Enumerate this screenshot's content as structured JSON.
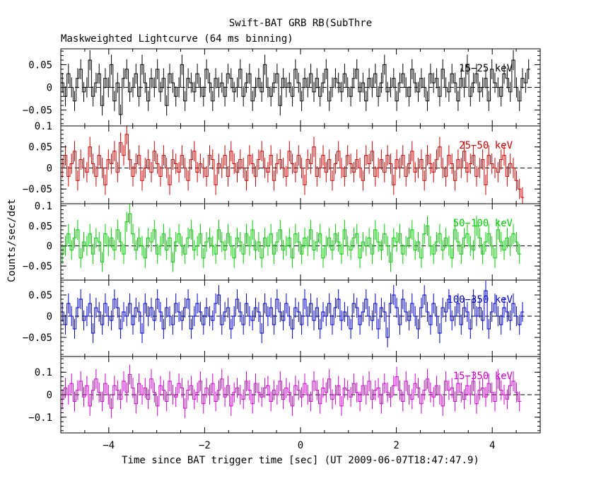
{
  "title": "Swift-BAT GRB RB(SubThre",
  "subtitle": "Maskweighted Lightcurve (64 ms binning)",
  "xlabel": "Time since BAT trigger time [sec] (UT 2009-06-07T18:47:47.9)",
  "ylabel": "Counts/sec/det",
  "xticks": [
    -4,
    -2,
    0,
    2,
    4
  ],
  "xtick_labels": [
    "−4",
    "−2",
    "0",
    "2",
    "4"
  ],
  "chart_data": {
    "type": "line",
    "xlim": [
      -5,
      5
    ],
    "bin_width_sec": 0.064,
    "panels": [
      {
        "name": "15−25 keV",
        "color": "#000000",
        "ylim": [
          -0.085,
          0.085
        ],
        "yticks": [
          -0.05,
          0,
          0.05
        ],
        "ytick_labels": [
          "−0.05",
          "0",
          "0.05"
        ],
        "values": [
          0.01,
          -0.02,
          0.03,
          0.0,
          -0.03,
          0.02,
          0.04,
          -0.01,
          0.0,
          0.06,
          -0.02,
          0.01,
          0.03,
          -0.04,
          0.02,
          0.0,
          0.05,
          -0.03,
          0.01,
          -0.06,
          0.02,
          0.04,
          -0.01,
          0.0,
          0.03,
          -0.02,
          0.05,
          0.01,
          -0.03,
          0.02,
          0.0,
          0.04,
          -0.01,
          0.02,
          -0.04,
          0.03,
          0.01,
          -0.02,
          0.0,
          0.05,
          -0.03,
          0.02,
          0.01,
          -0.01,
          0.03,
          0.0,
          -0.02,
          0.04,
          0.01,
          -0.03,
          0.02,
          0.0,
          0.01,
          -0.02,
          0.03,
          0.02,
          -0.01,
          0.0,
          0.04,
          -0.02,
          0.01,
          0.03,
          -0.03,
          0.0,
          0.02,
          -0.01,
          0.05,
          0.0,
          -0.02,
          0.01,
          0.03,
          -0.04,
          0.02,
          0.0,
          0.01,
          -0.02,
          0.04,
          0.01,
          -0.03,
          0.02,
          0.0,
          0.03,
          -0.01,
          0.02,
          -0.02,
          0.01,
          0.04,
          -0.03,
          0.0,
          0.02,
          0.01,
          -0.01,
          0.03,
          0.0,
          -0.02,
          0.02,
          0.04,
          -0.01,
          0.01,
          -0.03,
          0.02,
          0.0,
          0.03,
          -0.02,
          0.01,
          0.05,
          -0.01,
          0.0,
          0.02,
          -0.03,
          0.01,
          0.03,
          0.0,
          -0.02,
          0.04,
          0.01,
          -0.01,
          0.02,
          0.0,
          -0.03,
          0.03,
          0.01,
          0.02,
          -0.02,
          0.04,
          0.0,
          -0.01,
          0.03,
          0.01,
          -0.03,
          0.02,
          0.0,
          0.05,
          -0.02,
          0.01,
          0.03,
          -0.01,
          0.0,
          0.02,
          -0.03,
          0.04,
          0.01,
          0.0,
          -0.02,
          0.03,
          0.02,
          -0.01,
          0.06,
          0.0,
          -0.03,
          0.02,
          0.01,
          0.04
        ]
      },
      {
        "name": "25−50 keV",
        "color": "#cc0000",
        "ylim": [
          -0.085,
          0.1
        ],
        "yticks": [
          -0.05,
          0,
          0.05,
          0.1
        ],
        "ytick_labels": [
          "−0.05",
          "0",
          "0.05",
          "0.1"
        ],
        "values": [
          0.0,
          0.03,
          -0.02,
          0.01,
          0.04,
          -0.03,
          0.02,
          0.0,
          -0.01,
          0.05,
          0.01,
          -0.02,
          0.03,
          0.0,
          -0.04,
          0.02,
          0.01,
          0.04,
          -0.01,
          0.06,
          0.03,
          0.08,
          0.02,
          -0.02,
          0.01,
          0.03,
          -0.03,
          0.0,
          0.02,
          -0.01,
          0.04,
          0.01,
          -0.02,
          0.03,
          0.0,
          -0.04,
          0.02,
          0.01,
          -0.01,
          0.03,
          0.0,
          -0.03,
          0.02,
          0.04,
          -0.01,
          0.01,
          0.0,
          -0.02,
          0.03,
          0.02,
          -0.04,
          0.01,
          0.0,
          0.03,
          -0.02,
          0.04,
          0.01,
          -0.01,
          0.02,
          0.0,
          -0.03,
          0.03,
          0.01,
          -0.02,
          0.02,
          0.04,
          0.0,
          -0.01,
          0.03,
          -0.03,
          0.01,
          0.02,
          0.0,
          -0.02,
          0.04,
          0.01,
          -0.01,
          0.03,
          0.0,
          -0.04,
          0.02,
          0.01,
          0.05,
          -0.02,
          0.0,
          0.03,
          -0.01,
          0.02,
          -0.03,
          0.01,
          0.04,
          0.0,
          -0.02,
          0.03,
          0.01,
          -0.01,
          0.02,
          0.0,
          -0.03,
          0.03,
          0.01,
          0.04,
          -0.02,
          0.0,
          0.02,
          -0.01,
          0.03,
          0.01,
          -0.04,
          0.02,
          0.0,
          0.03,
          -0.02,
          0.01,
          0.04,
          -0.01,
          0.0,
          0.02,
          -0.03,
          0.03,
          0.01,
          -0.01,
          0.02,
          0.05,
          0.0,
          -0.02,
          0.03,
          0.01,
          -0.03,
          0.02,
          0.0,
          0.04,
          -0.01,
          0.01,
          0.03,
          -0.02,
          0.0,
          0.02,
          -0.04,
          0.03,
          0.01,
          0.0,
          -0.01,
          0.02,
          0.03,
          -0.02,
          0.01,
          0.0,
          -0.03,
          -0.05,
          -0.07
        ]
      },
      {
        "name": "50−100 keV",
        "color": "#00cc00",
        "ylim": [
          -0.085,
          0.105
        ],
        "yticks": [
          -0.05,
          0,
          0.05,
          0.1
        ],
        "ytick_labels": [
          "−0.05",
          "0",
          "0.05",
          "0.1"
        ],
        "values": [
          -0.02,
          0.0,
          0.03,
          -0.01,
          0.02,
          0.04,
          -0.03,
          0.01,
          0.0,
          0.03,
          -0.02,
          0.02,
          0.01,
          -0.04,
          0.03,
          0.0,
          0.02,
          -0.01,
          0.04,
          0.01,
          -0.02,
          0.06,
          0.08,
          0.03,
          -0.01,
          0.02,
          0.0,
          -0.03,
          0.02,
          0.01,
          0.04,
          -0.02,
          0.0,
          0.03,
          -0.01,
          0.02,
          -0.04,
          0.01,
          0.03,
          0.0,
          -0.02,
          0.02,
          0.04,
          -0.01,
          0.0,
          0.03,
          -0.03,
          0.01,
          0.02,
          0.0,
          -0.02,
          0.04,
          0.01,
          -0.01,
          0.03,
          0.0,
          -0.03,
          0.02,
          0.01,
          -0.02,
          0.03,
          0.0,
          0.04,
          -0.01,
          0.01,
          -0.03,
          0.02,
          0.0,
          0.03,
          -0.02,
          0.01,
          0.04,
          -0.01,
          0.0,
          0.02,
          -0.03,
          0.03,
          0.01,
          -0.02,
          0.02,
          0.0,
          0.04,
          -0.01,
          0.01,
          0.03,
          -0.03,
          0.0,
          0.02,
          -0.01,
          0.03,
          0.01,
          -0.02,
          0.04,
          0.0,
          -0.01,
          0.02,
          0.03,
          -0.03,
          0.01,
          0.0,
          0.02,
          -0.02,
          0.04,
          0.01,
          -0.01,
          0.03,
          0.0,
          -0.04,
          0.02,
          0.01,
          0.03,
          -0.02,
          0.0,
          0.02,
          0.04,
          -0.01,
          0.01,
          -0.03,
          0.03,
          0.05,
          0.0,
          -0.02,
          0.01,
          0.03,
          -0.01,
          0.02,
          0.0,
          -0.03,
          0.04,
          0.01,
          -0.02,
          0.02,
          0.03,
          0.0,
          -0.01,
          0.05,
          0.02,
          -0.02,
          0.01,
          0.03,
          0.0,
          -0.03,
          0.04,
          0.01,
          -0.01,
          0.02,
          0.0,
          0.03,
          0.01,
          -0.02
        ]
      },
      {
        "name": "100−350 keV",
        "color": "#0000cc",
        "ylim": [
          -0.095,
          0.085
        ],
        "yticks": [
          -0.05,
          0,
          0.05
        ],
        "ytick_labels": [
          "−0.05",
          "0",
          "0.05"
        ],
        "values": [
          0.01,
          -0.02,
          0.03,
          0.0,
          -0.03,
          0.02,
          0.04,
          -0.01,
          0.0,
          0.03,
          -0.04,
          0.02,
          0.01,
          -0.02,
          0.03,
          0.0,
          -0.01,
          0.04,
          0.02,
          -0.03,
          0.01,
          0.0,
          0.03,
          -0.02,
          0.02,
          0.01,
          -0.04,
          0.03,
          0.0,
          0.02,
          -0.01,
          0.04,
          0.01,
          -0.03,
          0.02,
          0.0,
          -0.02,
          0.03,
          0.01,
          -0.01,
          0.02,
          0.04,
          -0.03,
          0.0,
          0.03,
          0.01,
          -0.02,
          0.02,
          0.0,
          -0.01,
          0.03,
          0.05,
          -0.02,
          0.01,
          0.02,
          -0.03,
          0.0,
          0.04,
          0.01,
          -0.02,
          0.03,
          0.0,
          -0.01,
          0.02,
          0.01,
          -0.04,
          0.03,
          0.0,
          0.02,
          -0.02,
          0.04,
          0.01,
          -0.01,
          0.03,
          0.0,
          -0.03,
          0.02,
          0.01,
          -0.02,
          0.04,
          0.0,
          0.03,
          -0.01,
          0.02,
          -0.03,
          0.01,
          0.0,
          0.03,
          -0.02,
          0.02,
          0.04,
          -0.01,
          0.01,
          0.0,
          -0.03,
          0.03,
          0.02,
          -0.02,
          0.01,
          0.04,
          0.0,
          -0.01,
          0.03,
          -0.03,
          0.02,
          0.01,
          -0.05,
          0.03,
          0.05,
          0.02,
          -0.02,
          0.04,
          0.01,
          -0.01,
          0.03,
          0.0,
          -0.03,
          0.02,
          0.05,
          0.01,
          -0.02,
          0.03,
          0.0,
          -0.04,
          0.02,
          0.01,
          0.04,
          -0.01,
          0.0,
          0.03,
          -0.02,
          0.02,
          0.01,
          -0.03,
          0.04,
          0.0,
          0.02,
          -0.01,
          0.06,
          -0.03,
          0.01,
          0.03,
          0.0,
          -0.02,
          0.02,
          0.01,
          -0.01,
          0.03,
          0.0,
          -0.02,
          0.01
        ]
      },
      {
        "name": "15−350 keV",
        "color": "#cc00cc",
        "ylim": [
          -0.17,
          0.17
        ],
        "yticks": [
          -0.1,
          0,
          0.1
        ],
        "ytick_labels": [
          "−0.1",
          "0",
          "0.1"
        ],
        "values": [
          -0.02,
          0.03,
          0.0,
          0.05,
          -0.03,
          0.02,
          0.06,
          -0.01,
          0.04,
          -0.05,
          0.02,
          0.07,
          0.01,
          -0.03,
          0.05,
          0.0,
          -0.06,
          0.04,
          0.02,
          -0.02,
          0.06,
          0.01,
          0.09,
          0.03,
          -0.04,
          0.05,
          0.0,
          0.03,
          -0.02,
          0.07,
          0.01,
          -0.05,
          0.04,
          0.02,
          -0.03,
          0.06,
          0.0,
          -0.01,
          0.05,
          0.03,
          -0.06,
          0.02,
          0.04,
          -0.02,
          0.01,
          0.06,
          -0.04,
          0.03,
          0.0,
          0.05,
          -0.03,
          0.02,
          0.07,
          -0.01,
          0.04,
          -0.05,
          0.01,
          0.03,
          0.0,
          -0.02,
          0.06,
          0.02,
          -0.04,
          0.05,
          0.01,
          -0.01,
          0.03,
          0.04,
          -0.03,
          0.02,
          0.0,
          0.06,
          -0.02,
          0.03,
          0.01,
          -0.05,
          0.04,
          0.02,
          -0.01,
          0.05,
          0.0,
          -0.03,
          0.06,
          0.02,
          -0.04,
          0.03,
          0.01,
          0.07,
          -0.02,
          0.0,
          0.04,
          -0.05,
          0.03,
          0.02,
          -0.01,
          0.05,
          0.01,
          -0.03,
          0.04,
          0.0,
          0.06,
          -0.02,
          0.02,
          0.03,
          -0.04,
          0.05,
          0.01,
          -0.01,
          0.04,
          0.08,
          0.02,
          -0.03,
          0.06,
          0.0,
          -0.02,
          0.05,
          0.03,
          -0.04,
          0.02,
          0.07,
          0.01,
          -0.01,
          0.04,
          0.0,
          -0.05,
          0.06,
          0.02,
          0.03,
          -0.03,
          0.05,
          0.01,
          -0.02,
          0.04,
          0.0,
          0.06,
          -0.04,
          0.02,
          0.03,
          -0.01,
          0.05,
          0.01,
          -0.03,
          0.07,
          0.02,
          0.0,
          -0.02,
          0.04,
          0.06,
          0.01,
          -0.03
        ]
      }
    ]
  }
}
